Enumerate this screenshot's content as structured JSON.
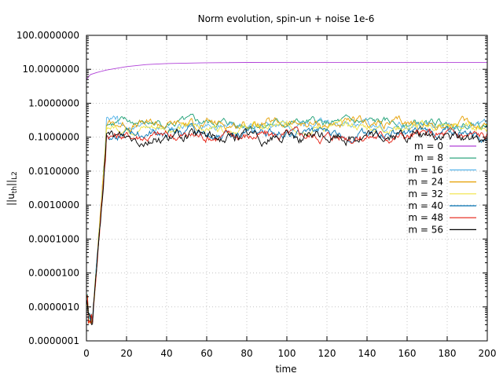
{
  "chart_data": {
    "type": "line",
    "title": "Norm evolution, spin-un + noise 1e-6",
    "xlabel": "time",
    "ylabel_main": "||u",
    "ylabel_sub": "th",
    "ylabel_after": "||",
    "ylabel_tail": "L2",
    "xlim": [
      0,
      200
    ],
    "ylim": [
      1e-07,
      100
    ],
    "yscale": "log",
    "grid": true,
    "legend_position": "right-middle",
    "x_ticks": [
      "0",
      "20",
      "40",
      "60",
      "80",
      "100",
      "120",
      "140",
      "160",
      "180",
      "200"
    ],
    "y_ticks": [
      "0.0000001",
      "0.0000010",
      "0.0000100",
      "0.0001000",
      "0.0010000",
      "0.0100000",
      "0.1000000",
      "1.0000000",
      "10.0000000",
      "100.0000000"
    ],
    "series": [
      {
        "name": "m = 0",
        "color": "#b040d8",
        "kind": "smooth",
        "x": [
          0,
          2,
          5,
          10,
          20,
          30,
          40,
          60,
          80,
          100,
          150,
          200
        ],
        "y": [
          5.0,
          7.0,
          8.0,
          9.5,
          12,
          13.8,
          14.8,
          15.6,
          15.9,
          16.0,
          16.0,
          16.0
        ]
      },
      {
        "name": "m = 8",
        "color": "#1a9e73",
        "kind": "noisy",
        "plateau": 0.25,
        "amp": 0.45,
        "seed": 8
      },
      {
        "name": "m = 16",
        "color": "#56b4e9",
        "kind": "noisy",
        "plateau": 0.22,
        "amp": 0.4,
        "seed": 16
      },
      {
        "name": "m = 24",
        "color": "#e69f00",
        "kind": "noisy",
        "plateau": 0.24,
        "amp": 0.5,
        "seed": 24
      },
      {
        "name": "m = 32",
        "color": "#f0e442",
        "kind": "noisy",
        "plateau": 0.2,
        "amp": 0.45,
        "seed": 32
      },
      {
        "name": "m = 40",
        "color": "#0072b2",
        "kind": "noisy",
        "plateau": 0.13,
        "amp": 0.5,
        "seed": 40
      },
      {
        "name": "m = 48",
        "color": "#e51e10",
        "kind": "noisy",
        "plateau": 0.11,
        "amp": 0.55,
        "seed": 48
      },
      {
        "name": "m = 56",
        "color": "#000000",
        "kind": "noisy",
        "plateau": 0.1,
        "amp": 0.6,
        "seed": 56
      }
    ]
  }
}
